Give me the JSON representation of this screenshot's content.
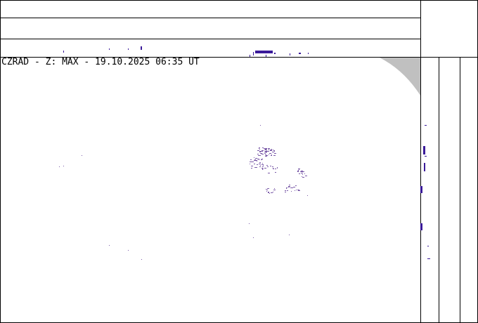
{
  "radar": {
    "title": "CZRAD - Z: MAX - 19.10.2025 06:35 UT",
    "echo_color": "#7a5aa8",
    "strong_echo_color": "#3a1a9a",
    "out_of_range_color": "#c0c0c0"
  }
}
